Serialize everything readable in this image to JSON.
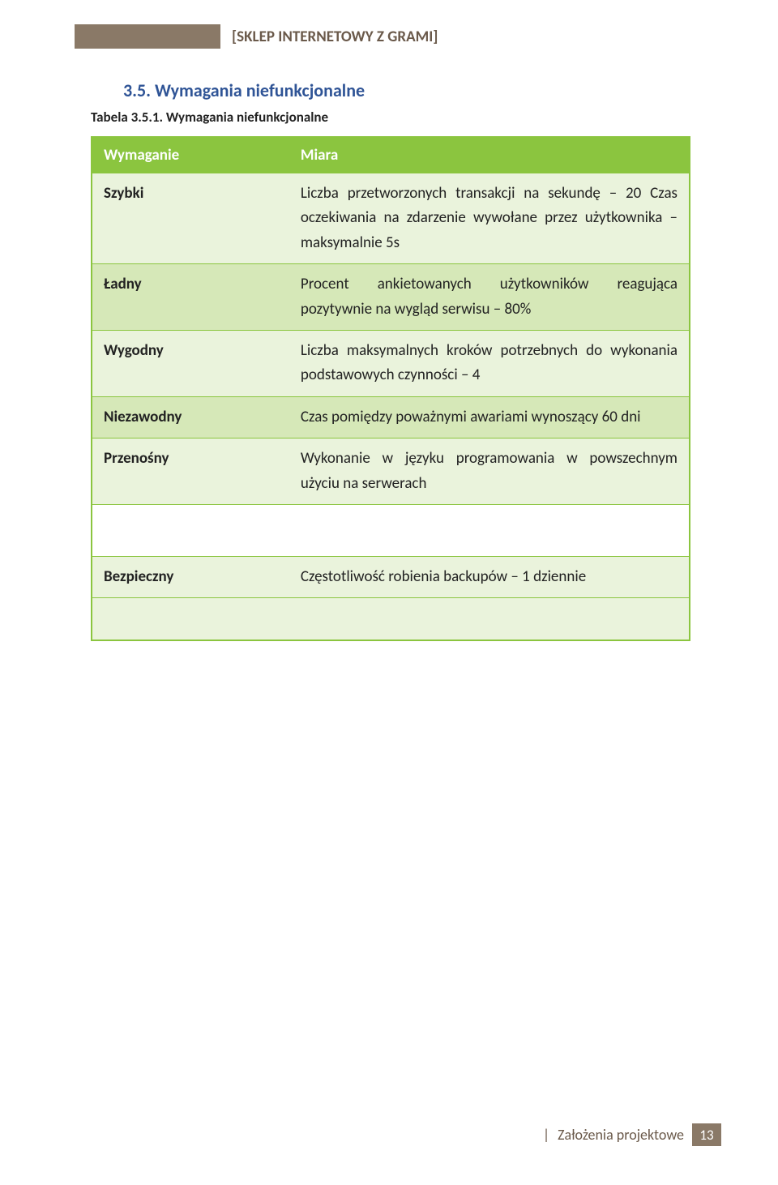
{
  "header": {
    "title_open": "[",
    "title_text": "SKLEP INTERNETOWY Z GRAMI",
    "title_close": "]"
  },
  "section": {
    "heading": "3.5. Wymagania niefunkcjonalne",
    "table_caption": "Tabela 3.5.1. Wymagania niefunkcjonalne"
  },
  "table": {
    "col1": "Wymaganie",
    "col2": "Miara",
    "rows": [
      {
        "label": "Szybki",
        "value": "Liczba przetworzonych transakcji na sekundę – 20\nCzas oczekiwania na zdarzenie wywołane przez użytkownika – maksymalnie 5s"
      },
      {
        "label": "Ładny",
        "value": "Procent ankietowanych użytkowników reagująca pozytywnie na wygląd serwisu – 80%"
      },
      {
        "label": "Wygodny",
        "value": "Liczba maksymalnych kroków potrzebnych do wykonania podstawowych czynności – 4"
      },
      {
        "label": "Niezawodny",
        "value": "Czas pomiędzy poważnymi awariami wynoszący 60 dni"
      },
      {
        "label": "Przenośny",
        "value": "Wykonanie w języku programowania w powszechnym użyciu na serwerach"
      }
    ],
    "safe_row": {
      "label": "Bezpieczny",
      "value": "Częstotliwość robienia backupów – 1 dziennie"
    }
  },
  "footer": {
    "section_label": "Założenia projektowe",
    "page_number": "13"
  }
}
